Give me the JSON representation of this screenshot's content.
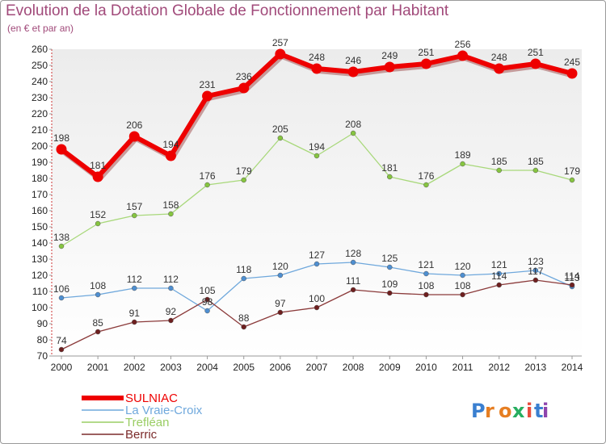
{
  "header": {
    "title": "Evolution de la Dotation Globale de Fonctionnement par Habitant",
    "subtitle": "(en € et par an)"
  },
  "logo": {
    "text": "Proxiti"
  },
  "chart_data": {
    "type": "line",
    "title": "Evolution de la Dotation Globale de Fonctionnement par Habitant",
    "ylabel": "(en € et par an)",
    "xlabel": "",
    "x": [
      2000,
      2001,
      2002,
      2003,
      2004,
      2005,
      2006,
      2007,
      2008,
      2009,
      2010,
      2011,
      2012,
      2013,
      2014
    ],
    "ylim": [
      70,
      260
    ],
    "ytick_step": 10,
    "grid": false,
    "legend": "bottom-left",
    "series": [
      {
        "name": "SULNIAC",
        "color": "#ee0000",
        "values": [
          198,
          181,
          206,
          194,
          231,
          236,
          257,
          248,
          246,
          249,
          251,
          256,
          248,
          251,
          245
        ]
      },
      {
        "name": "La Vraie-Croix",
        "color": "#6fa8dc",
        "values": [
          106,
          108,
          112,
          112,
          98,
          118,
          120,
          127,
          128,
          125,
          121,
          120,
          121,
          123,
          113
        ]
      },
      {
        "name": "Trefléan",
        "color": "#9acd63",
        "values": [
          138,
          152,
          157,
          158,
          176,
          179,
          205,
          194,
          208,
          181,
          176,
          189,
          185,
          185,
          179
        ]
      },
      {
        "name": "Berric",
        "color": "#7b2b2b",
        "values": [
          74,
          85,
          91,
          92,
          105,
          88,
          97,
          100,
          111,
          109,
          108,
          108,
          114,
          117,
          114
        ]
      }
    ]
  }
}
